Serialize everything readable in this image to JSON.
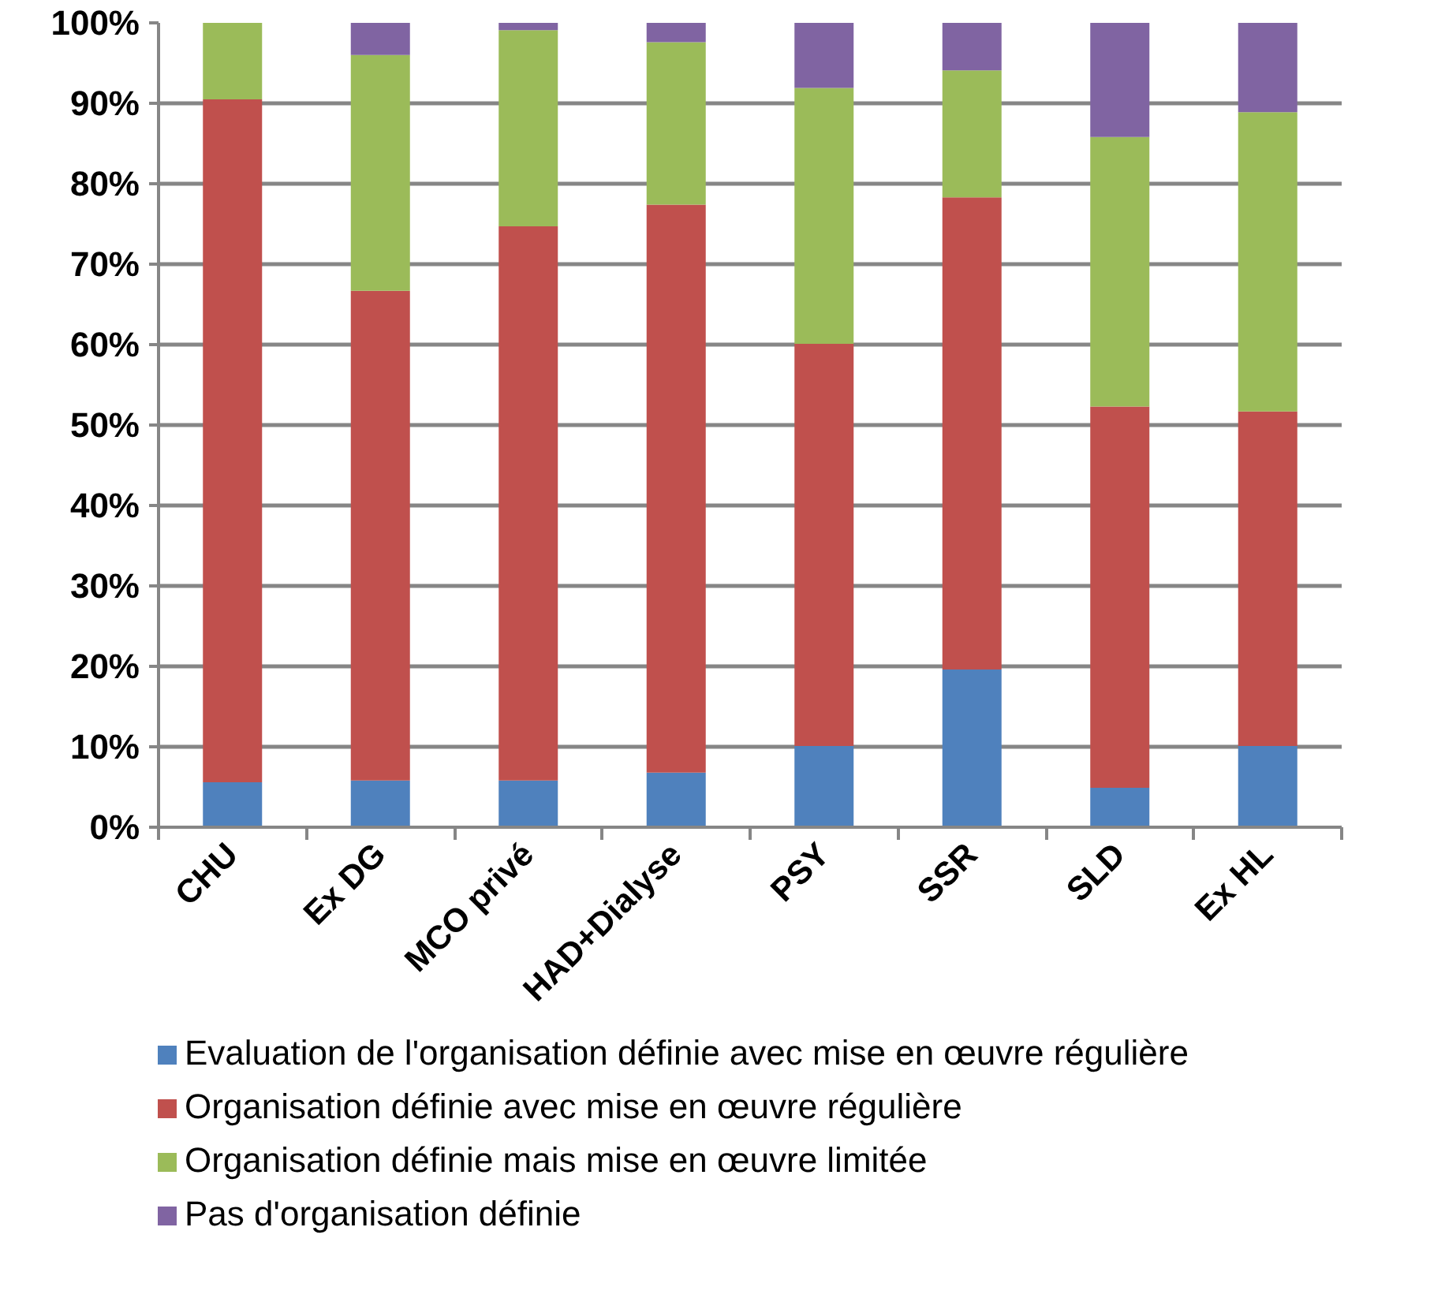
{
  "chart_data": {
    "type": "bar",
    "stacked": true,
    "categories": [
      "CHU",
      "Ex DG",
      "MCO privé",
      "HAD+Dialyse",
      "PSY",
      "SSR",
      "SLD",
      "Ex HL"
    ],
    "series": [
      {
        "name": "Evaluation de l'organisation définie avec mise en œuvre régulière",
        "color": "#4f81bd",
        "values": [
          5.6,
          5.8,
          5.8,
          6.8,
          10.1,
          19.6,
          4.9,
          10.1
        ]
      },
      {
        "name": "Organisation définie avec mise en œuvre régulière",
        "color": "#c0504d",
        "values": [
          84.9,
          60.9,
          68.9,
          70.6,
          50.0,
          58.7,
          47.4,
          41.6
        ]
      },
      {
        "name": "Organisation définie mais mise en œuvre limitée",
        "color": "#9bbb59",
        "values": [
          9.5,
          29.3,
          24.4,
          20.2,
          31.8,
          15.8,
          33.5,
          37.2
        ]
      },
      {
        "name": "Pas d'organisation définie",
        "color": "#8064a2",
        "values": [
          0,
          4.0,
          0.9,
          2.4,
          8.1,
          5.9,
          14.2,
          11.1
        ]
      }
    ],
    "ylim": [
      0,
      100
    ],
    "yticks": [
      {
        "value": 0,
        "label": "0%"
      },
      {
        "value": 10,
        "label": "10%"
      },
      {
        "value": 20,
        "label": "20%"
      },
      {
        "value": 30,
        "label": "30%"
      },
      {
        "value": 40,
        "label": "40%"
      },
      {
        "value": 50,
        "label": "50%"
      },
      {
        "value": 60,
        "label": "60%"
      },
      {
        "value": 70,
        "label": "70%"
      },
      {
        "value": 80,
        "label": "80%"
      },
      {
        "value": 90,
        "label": "90%"
      },
      {
        "value": 100,
        "label": "100%"
      }
    ],
    "grid": "y",
    "legend": "bottom"
  }
}
